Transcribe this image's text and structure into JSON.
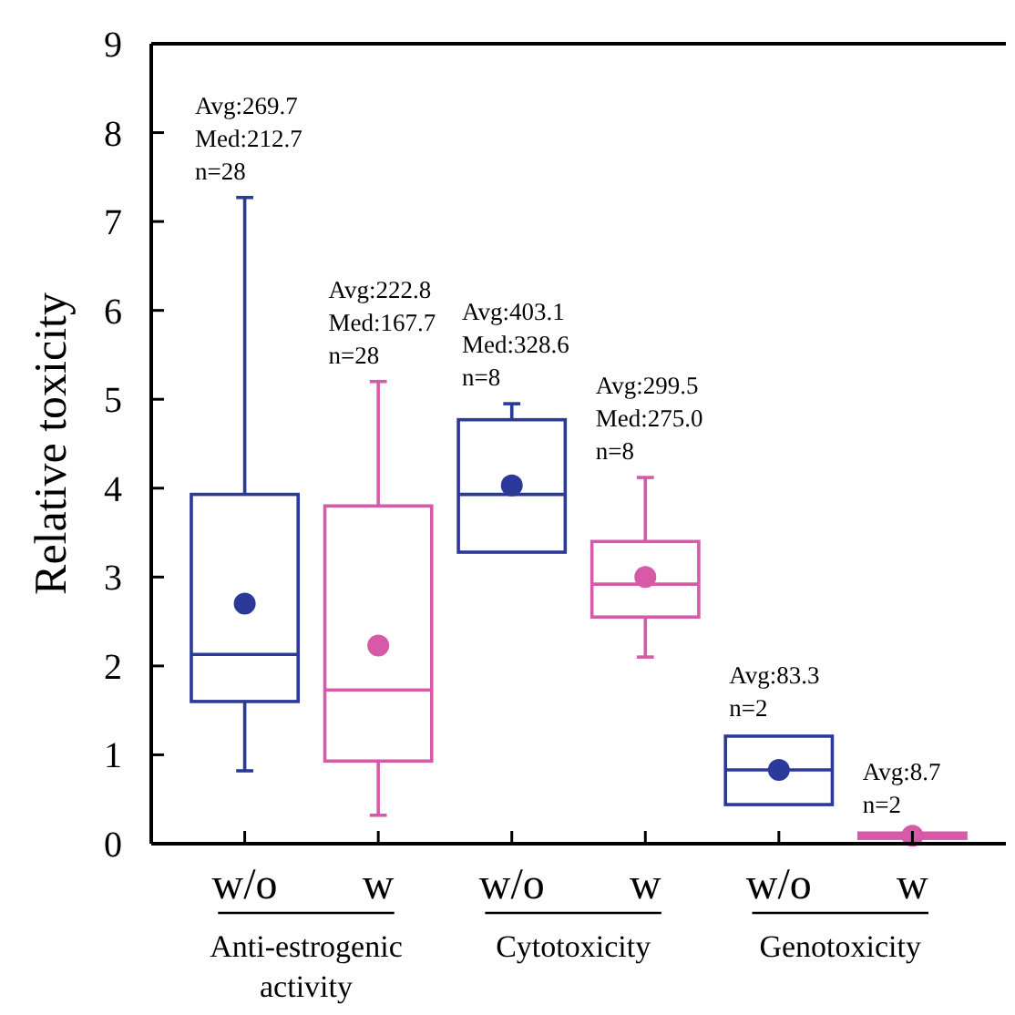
{
  "chart_data": {
    "type": "box",
    "ylabel": "Relative toxicity",
    "categories": [
      "w/o",
      "w",
      "w/o",
      "w",
      "w/o",
      "w"
    ],
    "colors": [
      "#2b3a9a",
      "#d65aa8",
      "#2b3a9a",
      "#d65aa8",
      "#2b3a9a",
      "#d65aa8"
    ],
    "boxes": [
      {
        "low": 0.82,
        "q1": 1.6,
        "median": 2.13,
        "q3": 3.93,
        "high": 7.27,
        "mean": 2.7
      },
      {
        "low": 0.32,
        "q1": 0.93,
        "median": 1.73,
        "q3": 3.8,
        "high": 5.2,
        "mean": 2.23
      },
      {
        "low": 3.28,
        "q1": 3.28,
        "median": 3.93,
        "q3": 4.77,
        "high": 4.95,
        "mean": 4.03
      },
      {
        "low": 2.1,
        "q1": 2.55,
        "median": 2.92,
        "q3": 3.4,
        "high": 4.12,
        "mean": 3.0
      },
      {
        "low": 0.44,
        "q1": 0.44,
        "median": 0.83,
        "q3": 1.21,
        "high": 1.21,
        "mean": 0.83
      },
      {
        "low": 0.06,
        "q1": 0.06,
        "median": 0.09,
        "q3": 0.12,
        "high": 0.12,
        "mean": 0.09
      }
    ],
    "ylim": [
      0,
      9
    ],
    "yticks": [
      0,
      1,
      2,
      3,
      4,
      5,
      6,
      7,
      8,
      9
    ],
    "grid": false,
    "marker": "circle",
    "annotations": [
      "Avg:269.7\nMed:212.7\nn=28",
      "Avg:222.8\nMed:167.7\nn=28",
      "Avg:403.1\nMed:328.6\nn=8",
      "Avg:299.5\nMed:275.0\nn=8",
      "Avg:83.3\nn=2",
      "Avg:8.7\nn=2",
      "Anti-estrogenic\nactivity",
      "Cytotoxicity",
      "Genotoxicity"
    ]
  }
}
